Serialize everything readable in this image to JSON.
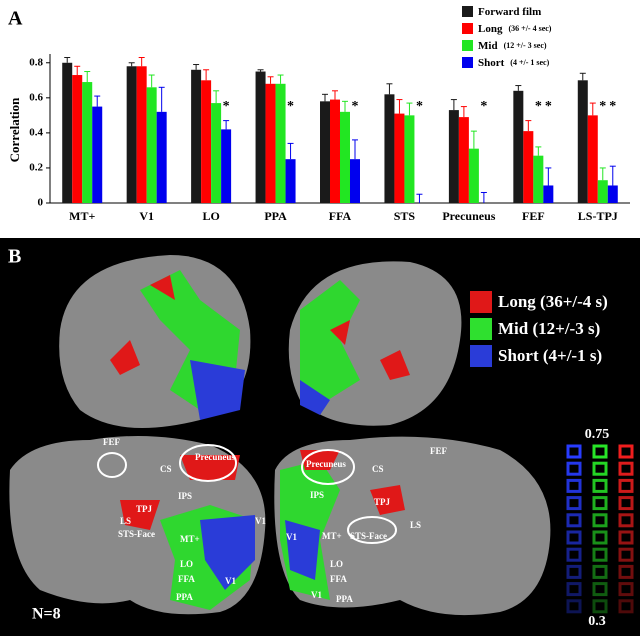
{
  "chart_data": {
    "type": "bar",
    "panel_label": "A",
    "ylabel": "Correlation",
    "categories": [
      "MT+",
      "V1",
      "LO",
      "PPA",
      "FFA",
      "STS",
      "Precuneus",
      "FEF",
      "LS-TPJ"
    ],
    "series": [
      {
        "name": "Forward film",
        "color": "#1a1a1a",
        "values": [
          0.8,
          0.78,
          0.76,
          0.75,
          0.58,
          0.62,
          0.53,
          0.64,
          0.7
        ],
        "errors": [
          0.03,
          0.02,
          0.03,
          0.01,
          0.04,
          0.06,
          0.06,
          0.03,
          0.04
        ]
      },
      {
        "name": "Long",
        "detail": "(36 +/- 4 sec)",
        "color": "#ff0000",
        "values": [
          0.73,
          0.78,
          0.7,
          0.68,
          0.59,
          0.51,
          0.49,
          0.41,
          0.5
        ],
        "errors": [
          0.05,
          0.05,
          0.06,
          0.04,
          0.05,
          0.08,
          0.06,
          0.06,
          0.07
        ]
      },
      {
        "name": "Mid",
        "detail": "(12 +/- 3 sec)",
        "color": "#22e622",
        "values": [
          0.69,
          0.66,
          0.57,
          0.68,
          0.52,
          0.5,
          0.31,
          0.27,
          0.13
        ],
        "errors": [
          0.06,
          0.07,
          0.07,
          0.05,
          0.06,
          0.07,
          0.1,
          0.05,
          0.07
        ],
        "markers": [
          null,
          null,
          null,
          null,
          null,
          null,
          null,
          "*",
          "*"
        ]
      },
      {
        "name": "Short",
        "detail": "(4 +/- 1 sec)",
        "color": "#0000ee",
        "values": [
          0.55,
          0.52,
          0.42,
          0.25,
          0.25,
          0.0,
          0.0,
          0.1,
          0.1
        ],
        "errors": [
          0.06,
          0.14,
          0.05,
          0.09,
          0.11,
          0.05,
          0.06,
          0.1,
          0.11
        ],
        "markers": [
          null,
          null,
          "*",
          "*",
          "*",
          "*",
          "*",
          "*",
          "*"
        ]
      }
    ],
    "ylim": [
      0,
      0.85
    ],
    "yticks": [
      0,
      0.2,
      0.4,
      0.6,
      0.8
    ]
  },
  "panel_b": {
    "panel_label": "B",
    "legend": [
      "Long (36+/-4 s)",
      "Mid (12+/-3 s)",
      "Short (4+/-1 s)"
    ],
    "scale_top": "0.75",
    "scale_bottom": "0.3",
    "subjects": "N=8",
    "labels": [
      "FEF",
      "Precuneus",
      "CS",
      "IPS",
      "TPJ",
      "LS",
      "STS-Face",
      "MT+",
      "LO",
      "FFA",
      "PPA",
      "V1",
      "Precuneus",
      "CS",
      "FEF",
      "IPS",
      "TPJ",
      "LS",
      "STS-Face",
      "MT+",
      "LO",
      "FFA",
      "PPA",
      "V1",
      "V1",
      "V1"
    ]
  }
}
